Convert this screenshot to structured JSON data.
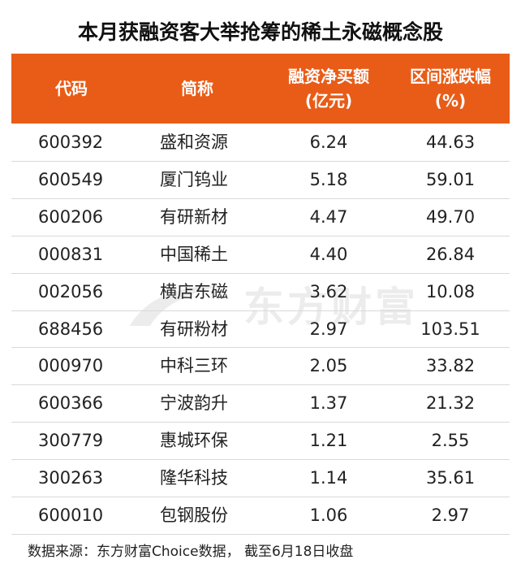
{
  "title": "本月获融资客大举抢筹的稀土永磁概念股",
  "table": {
    "headers": [
      [
        "代码"
      ],
      [
        "简称"
      ],
      [
        "融资净买额",
        "(亿元)"
      ],
      [
        "区间涨跌幅",
        "(%)"
      ]
    ],
    "rows": [
      [
        "600392",
        "盛和资源",
        "6.24",
        "44.63"
      ],
      [
        "600549",
        "厦门钨业",
        "5.18",
        "59.01"
      ],
      [
        "600206",
        "有研新材",
        "4.47",
        "49.70"
      ],
      [
        "000831",
        "中国稀土",
        "4.40",
        "26.84"
      ],
      [
        "002056",
        "横店东磁",
        "3.62",
        "10.08"
      ],
      [
        "688456",
        "有研粉材",
        "2.97",
        "103.51"
      ],
      [
        "000970",
        "中科三环",
        "2.05",
        "33.82"
      ],
      [
        "600366",
        "宁波韵升",
        "1.37",
        "21.32"
      ],
      [
        "300779",
        "惠城环保",
        "1.21",
        "2.55"
      ],
      [
        "300263",
        "隆华科技",
        "1.14",
        "35.61"
      ],
      [
        "600010",
        "包钢股份",
        "1.06",
        "2.97"
      ]
    ]
  },
  "watermark": "东方财富",
  "source": "数据来源：东方财富Choice数据， 截至6月18日收盘"
}
